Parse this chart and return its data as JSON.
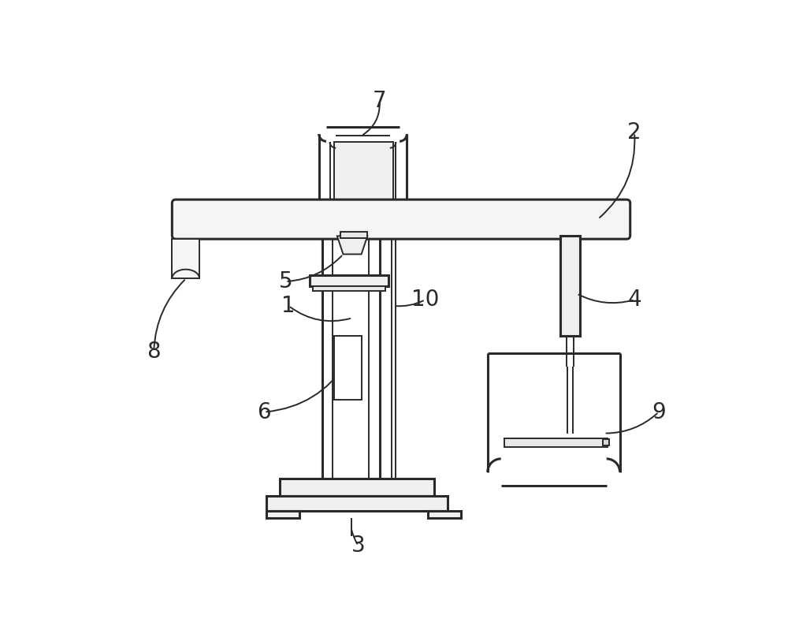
{
  "bg_color": "#ffffff",
  "line_color": "#2a2a2a",
  "line_width": 1.8,
  "fig_width": 10.0,
  "fig_height": 7.94,
  "lw_thick": 2.2,
  "lw_thin": 1.4
}
